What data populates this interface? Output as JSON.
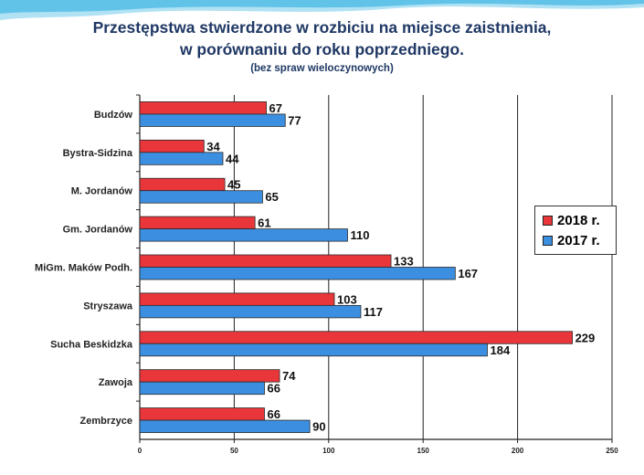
{
  "title": {
    "line1": "Przestępstwa stwierdzone w rozbiciu na miejsce zaistnienia,",
    "line2": "w porównaniu do roku poprzedniego.",
    "note": "(bez spraw wieloczynowych)"
  },
  "colors": {
    "series_2018": "#e8363b",
    "series_2017": "#3c8fe0",
    "title": "#1f3864",
    "wave": "#5bc4ea"
  },
  "chart_data": {
    "type": "bar",
    "orientation": "horizontal",
    "categories": [
      "Budzów",
      "Bystra-Sidzina",
      "M. Jordanów",
      "Gm. Jordanów",
      "MiGm. Maków Podh.",
      "Stryszawa",
      "Sucha Beskidzka",
      "Zawoja",
      "Zembrzyce"
    ],
    "series": [
      {
        "name": "2018 r.",
        "values": [
          67,
          34,
          45,
          61,
          133,
          103,
          229,
          74,
          66
        ]
      },
      {
        "name": "2017 r.",
        "values": [
          77,
          44,
          65,
          110,
          167,
          117,
          184,
          66,
          90
        ]
      }
    ],
    "xlim": [
      0,
      250
    ],
    "xticks": [
      "0",
      "50",
      "100",
      "150",
      "200",
      "250"
    ],
    "grid": "vertical",
    "legend_position": "right",
    "data_labels": true
  }
}
